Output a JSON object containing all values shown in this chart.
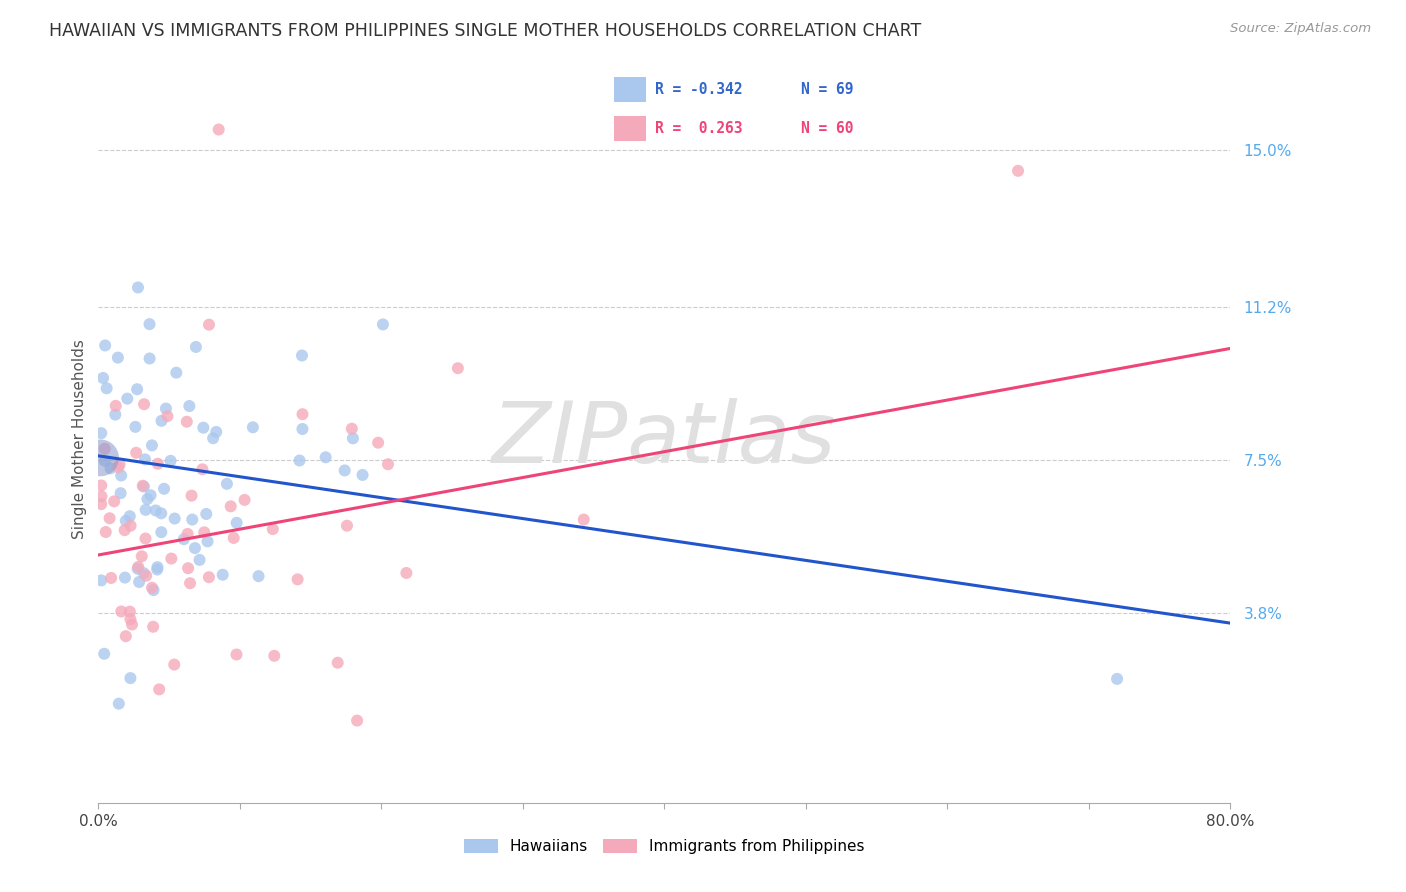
{
  "title": "HAWAIIAN VS IMMIGRANTS FROM PHILIPPINES SINGLE MOTHER HOUSEHOLDS CORRELATION CHART",
  "source": "Source: ZipAtlas.com",
  "ylabel": "Single Mother Households",
  "xlim": [
    0.0,
    0.8
  ],
  "ylim": [
    -0.008,
    0.168
  ],
  "ytick_positions": [
    0.038,
    0.075,
    0.112,
    0.15
  ],
  "ytick_labels": [
    "3.8%",
    "7.5%",
    "11.2%",
    "15.0%"
  ],
  "xtick_labels": [
    "0.0%",
    "",
    "",
    "",
    "",
    "",
    "",
    "",
    "80.0%"
  ],
  "watermark": "ZIPatlas",
  "blue_color": "#aac8ee",
  "pink_color": "#f5aabb",
  "blue_line_color": "#2255cc",
  "pink_line_color": "#ee4477",
  "blue_line_start_y": 0.076,
  "blue_line_end_y": 0.0355,
  "pink_line_start_y": 0.052,
  "pink_line_end_y": 0.102,
  "legend_R_blue": "R = -0.342",
  "legend_N_blue": "N = 69",
  "legend_R_pink": "R =  0.263",
  "legend_N_pink": "N = 60",
  "legend_label_blue": "Hawaiians",
  "legend_label_pink": "Immigrants from Philippines"
}
